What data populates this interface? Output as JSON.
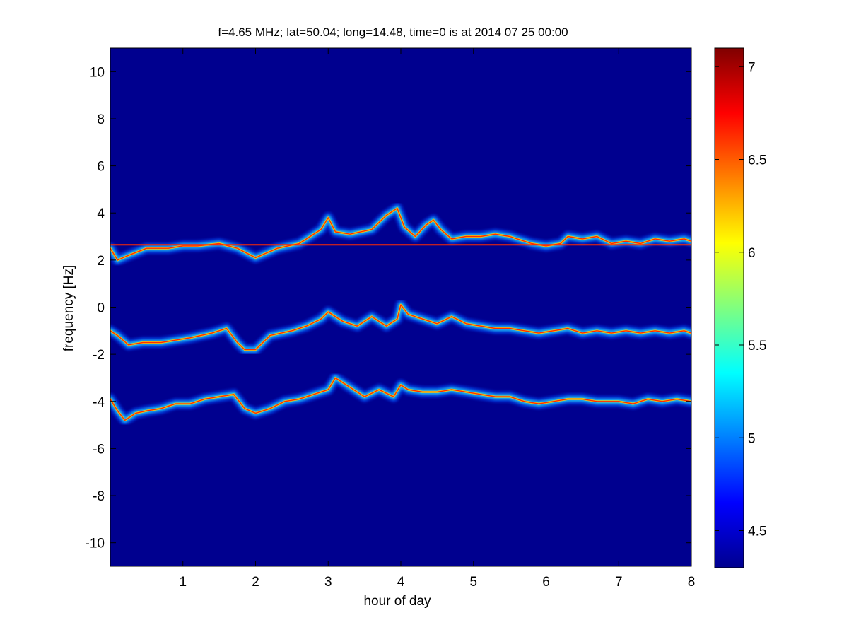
{
  "chart_data": {
    "type": "heatmap",
    "title": "f=4.65 MHz;  lat=50.04; long=14.48, time=0 is at 2014 07 25 00:00",
    "xlabel": "hour of day",
    "ylabel": "frequency [Hz]",
    "xlim": [
      0,
      8
    ],
    "ylim": [
      -11,
      11
    ],
    "xticks": [
      1,
      2,
      3,
      4,
      5,
      6,
      7,
      8
    ],
    "yticks": [
      -10,
      -8,
      -6,
      -4,
      -2,
      0,
      2,
      4,
      6,
      8,
      10
    ],
    "colorbar": {
      "colormap": "jet",
      "clim": [
        4.3,
        7.1
      ],
      "ticks": [
        4.5,
        5,
        5.5,
        6,
        6.5,
        7
      ]
    },
    "background_color": "#00008f",
    "features": {
      "carrier_line": {
        "frequency_hz": 2.65,
        "color": "#ff2a00"
      },
      "traces": [
        {
          "name": "",
          "points": [
            [
              0,
              2.5
            ],
            [
              0.1,
              2.0
            ],
            [
              0.25,
              2.2
            ],
            [
              0.5,
              2.5
            ],
            [
              0.8,
              2.5
            ],
            [
              1.0,
              2.6
            ],
            [
              1.2,
              2.6
            ],
            [
              1.5,
              2.7
            ],
            [
              1.75,
              2.5
            ],
            [
              2.0,
              2.1
            ],
            [
              2.3,
              2.5
            ],
            [
              2.6,
              2.7
            ],
            [
              2.9,
              3.3
            ],
            [
              3.0,
              3.8
            ],
            [
              3.1,
              3.2
            ],
            [
              3.3,
              3.1
            ],
            [
              3.6,
              3.3
            ],
            [
              3.8,
              3.9
            ],
            [
              3.95,
              4.2
            ],
            [
              4.05,
              3.4
            ],
            [
              4.2,
              3.0
            ],
            [
              4.35,
              3.5
            ],
            [
              4.45,
              3.7
            ],
            [
              4.55,
              3.3
            ],
            [
              4.7,
              2.9
            ],
            [
              4.9,
              3.0
            ],
            [
              5.1,
              3.0
            ],
            [
              5.3,
              3.1
            ],
            [
              5.5,
              3.0
            ],
            [
              5.7,
              2.8
            ],
            [
              5.8,
              2.7
            ],
            [
              6.0,
              2.6
            ],
            [
              6.2,
              2.7
            ],
            [
              6.3,
              3.0
            ],
            [
              6.5,
              2.9
            ],
            [
              6.7,
              3.0
            ],
            [
              6.9,
              2.7
            ],
            [
              7.1,
              2.8
            ],
            [
              7.3,
              2.7
            ],
            [
              7.5,
              2.9
            ],
            [
              7.7,
              2.8
            ],
            [
              7.9,
              2.9
            ],
            [
              8.0,
              2.8
            ]
          ]
        },
        {
          "name": "",
          "points": [
            [
              0,
              -1.0
            ],
            [
              0.1,
              -1.2
            ],
            [
              0.25,
              -1.6
            ],
            [
              0.45,
              -1.5
            ],
            [
              0.7,
              -1.5
            ],
            [
              0.9,
              -1.4
            ],
            [
              1.1,
              -1.3
            ],
            [
              1.4,
              -1.1
            ],
            [
              1.6,
              -0.9
            ],
            [
              1.75,
              -1.5
            ],
            [
              1.85,
              -1.8
            ],
            [
              2.0,
              -1.8
            ],
            [
              2.2,
              -1.2
            ],
            [
              2.5,
              -1.0
            ],
            [
              2.7,
              -0.8
            ],
            [
              2.9,
              -0.5
            ],
            [
              3.0,
              -0.2
            ],
            [
              3.2,
              -0.6
            ],
            [
              3.4,
              -0.8
            ],
            [
              3.6,
              -0.4
            ],
            [
              3.8,
              -0.8
            ],
            [
              3.95,
              -0.5
            ],
            [
              4.0,
              0.1
            ],
            [
              4.1,
              -0.3
            ],
            [
              4.3,
              -0.5
            ],
            [
              4.5,
              -0.7
            ],
            [
              4.7,
              -0.4
            ],
            [
              4.9,
              -0.7
            ],
            [
              5.1,
              -0.8
            ],
            [
              5.3,
              -0.9
            ],
            [
              5.5,
              -0.9
            ],
            [
              5.7,
              -1.0
            ],
            [
              5.9,
              -1.1
            ],
            [
              6.1,
              -1.0
            ],
            [
              6.3,
              -0.9
            ],
            [
              6.5,
              -1.1
            ],
            [
              6.7,
              -1.0
            ],
            [
              6.9,
              -1.1
            ],
            [
              7.1,
              -1.0
            ],
            [
              7.3,
              -1.1
            ],
            [
              7.5,
              -1.0
            ],
            [
              7.7,
              -1.1
            ],
            [
              7.9,
              -1.0
            ],
            [
              8.0,
              -1.1
            ]
          ]
        },
        {
          "name": "",
          "points": [
            [
              0,
              -3.9
            ],
            [
              0.1,
              -4.4
            ],
            [
              0.2,
              -4.8
            ],
            [
              0.35,
              -4.5
            ],
            [
              0.5,
              -4.4
            ],
            [
              0.7,
              -4.3
            ],
            [
              0.9,
              -4.1
            ],
            [
              1.1,
              -4.1
            ],
            [
              1.3,
              -3.9
            ],
            [
              1.5,
              -3.8
            ],
            [
              1.7,
              -3.7
            ],
            [
              1.85,
              -4.3
            ],
            [
              2.0,
              -4.5
            ],
            [
              2.2,
              -4.3
            ],
            [
              2.4,
              -4.0
            ],
            [
              2.6,
              -3.9
            ],
            [
              2.8,
              -3.7
            ],
            [
              3.0,
              -3.5
            ],
            [
              3.1,
              -3.0
            ],
            [
              3.3,
              -3.4
            ],
            [
              3.5,
              -3.8
            ],
            [
              3.7,
              -3.5
            ],
            [
              3.9,
              -3.8
            ],
            [
              4.0,
              -3.3
            ],
            [
              4.1,
              -3.5
            ],
            [
              4.3,
              -3.6
            ],
            [
              4.5,
              -3.6
            ],
            [
              4.7,
              -3.5
            ],
            [
              4.9,
              -3.6
            ],
            [
              5.1,
              -3.7
            ],
            [
              5.3,
              -3.8
            ],
            [
              5.5,
              -3.8
            ],
            [
              5.7,
              -4.0
            ],
            [
              5.9,
              -4.1
            ],
            [
              6.1,
              -4.0
            ],
            [
              6.3,
              -3.9
            ],
            [
              6.5,
              -3.9
            ],
            [
              6.7,
              -4.0
            ],
            [
              6.85,
              -4.0
            ],
            [
              7.0,
              -4.0
            ],
            [
              7.2,
              -4.1
            ],
            [
              7.4,
              -3.9
            ],
            [
              7.6,
              -4.0
            ],
            [
              7.8,
              -3.9
            ],
            [
              8.0,
              -4.0
            ]
          ]
        }
      ]
    }
  }
}
